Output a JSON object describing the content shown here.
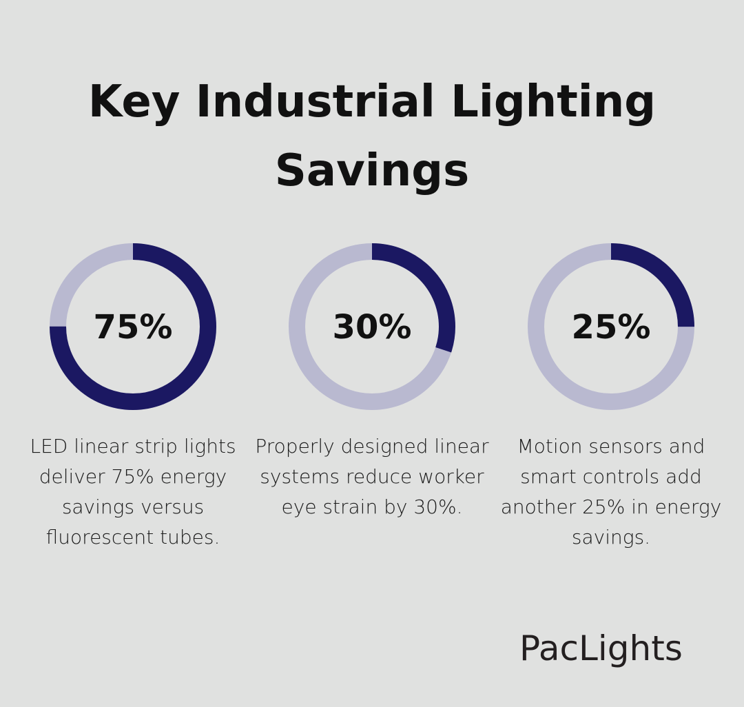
{
  "title": "Key Industrial Lighting Savings",
  "colors": {
    "filled": "#1b1862",
    "track": "#b9b9d0",
    "background": "#e0e1e0"
  },
  "chart_data": [
    {
      "type": "pie",
      "variant": "donut",
      "value": 75,
      "max": 100,
      "label": "75%",
      "description": "LED linear strip lights deliver 75% energy savings versus fluorescent tubes."
    },
    {
      "type": "pie",
      "variant": "donut",
      "value": 30,
      "max": 100,
      "label": "30%",
      "description": "Properly designed linear systems reduce worker eye strain by 30%."
    },
    {
      "type": "pie",
      "variant": "donut",
      "value": 25,
      "max": 100,
      "label": "25%",
      "description": "Motion sensors and smart controls add another 25% in energy savings."
    }
  ],
  "logo": "PacLights"
}
